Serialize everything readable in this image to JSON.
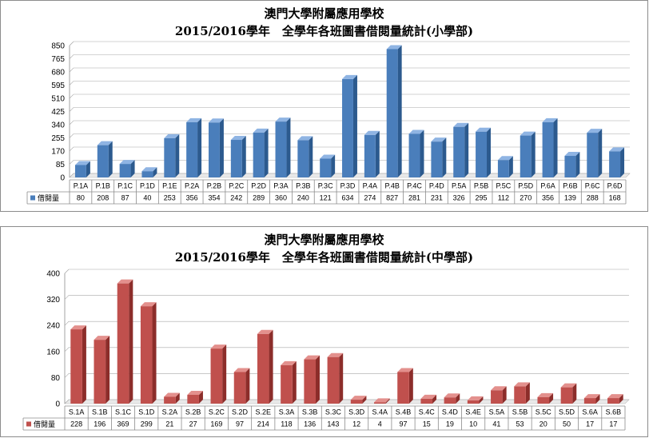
{
  "chart_data": [
    {
      "type": "bar",
      "title": "澳門大學附屬應用學校",
      "subtitle": "2015/2016學年　全學年各班圖書借閱量統計(小學部)",
      "categories": [
        "P.1A",
        "P.1B",
        "P.1C",
        "P.1D",
        "P.1E",
        "P.2A",
        "P.2B",
        "P.2C",
        "P.2D",
        "P.3A",
        "P.3B",
        "P.3C",
        "P.3D",
        "P.4A",
        "P.4B",
        "P.4C",
        "P.4D",
        "P.5A",
        "P.5B",
        "P.5C",
        "P.5D",
        "P.6A",
        "P.6B",
        "P.6C",
        "P.6D"
      ],
      "series": [
        {
          "name": "借閱量",
          "values": [
            80,
            208,
            87,
            40,
            253,
            356,
            354,
            242,
            289,
            360,
            240,
            121,
            634,
            274,
            827,
            281,
            231,
            326,
            295,
            112,
            270,
            356,
            139,
            288,
            168
          ]
        }
      ],
      "ylim": [
        0,
        850
      ],
      "yticks": [
        0,
        85,
        170,
        255,
        340,
        425,
        510,
        595,
        680,
        765,
        850
      ],
      "grid": true,
      "legend": "data-table-left",
      "colors": {
        "bar": "#4a7ebb",
        "bar_side": "#2c5a8e",
        "bar_top": "#8fb4e3"
      }
    },
    {
      "type": "bar",
      "title": "澳門大學附屬應用學校",
      "subtitle": "2015/2016學年　全學年各班圖書借閱量統計(中學部)",
      "categories": [
        "S.1A",
        "S.1B",
        "S.1C",
        "S.1D",
        "S.2A",
        "S.2B",
        "S.2C",
        "S.2D",
        "S.2E",
        "S.3A",
        "S.3B",
        "S.3C",
        "S.3D",
        "S.4A",
        "S.4B",
        "S.4C",
        "S.4D",
        "S.4E",
        "S.5A",
        "S.5B",
        "S.5C",
        "S.5D",
        "S.6A",
        "S.6B"
      ],
      "series": [
        {
          "name": "借閱量",
          "values": [
            228,
            196,
            369,
            299,
            21,
            27,
            169,
            97,
            214,
            118,
            136,
            143,
            12,
            4,
            97,
            15,
            19,
            10,
            41,
            53,
            20,
            50,
            17,
            17
          ]
        }
      ],
      "ylim": [
        0,
        400
      ],
      "yticks": [
        0,
        80,
        160,
        240,
        320,
        400
      ],
      "grid": true,
      "legend": "data-table-left",
      "colors": {
        "bar": "#c0504d",
        "bar_side": "#8c2d2a",
        "bar_top": "#e3908d"
      }
    }
  ]
}
